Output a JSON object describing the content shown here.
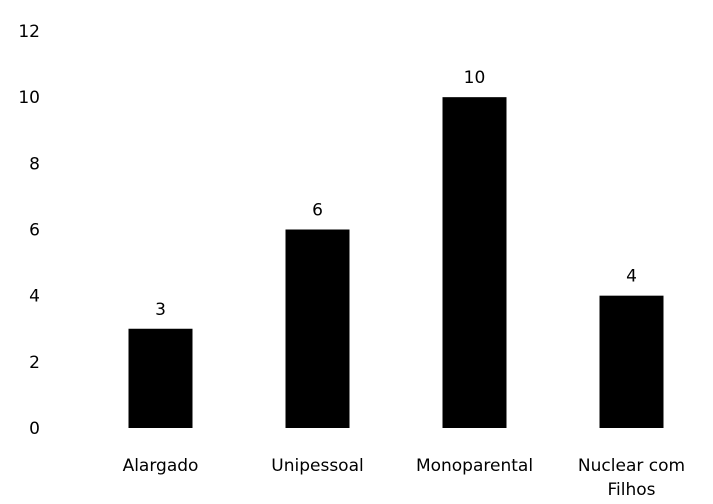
{
  "chart_data": {
    "type": "bar",
    "categories": [
      "Alargado",
      "Unipessoal",
      "Monoparental",
      [
        "Nuclear com",
        "Filhos"
      ]
    ],
    "values": [
      3,
      6,
      10,
      4
    ],
    "data_labels": [
      "3",
      "6",
      "10",
      "4"
    ],
    "ylim": [
      0,
      12
    ],
    "yticks": [
      "0",
      "2",
      "4",
      "6",
      "8",
      "10",
      "12"
    ],
    "title": "",
    "xlabel": "",
    "ylabel": "",
    "grid": false,
    "legend": "none",
    "colors": {
      "bar": "#000000",
      "text": "#000000",
      "background": "#ffffff"
    }
  }
}
